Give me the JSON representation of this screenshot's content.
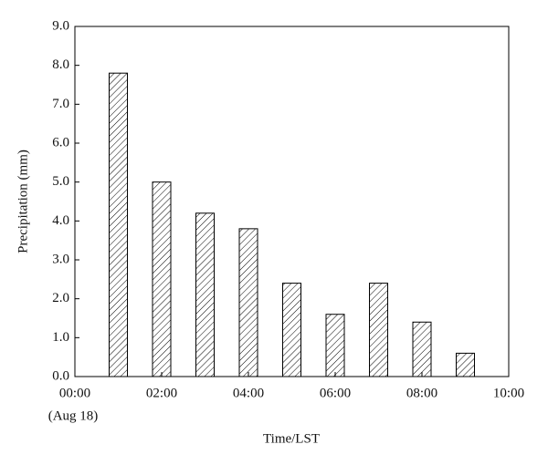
{
  "chart_data": {
    "type": "bar",
    "x_label": "Time/LST",
    "y_label": "Precipitation (mm)",
    "x_annotation": "(Aug 18)",
    "x": [
      1,
      2,
      3,
      4,
      5,
      6,
      7,
      8,
      9
    ],
    "values": [
      7.8,
      5.0,
      4.2,
      3.8,
      2.4,
      1.6,
      2.4,
      1.4,
      0.6
    ],
    "color": "#000000",
    "xlim": [
      0,
      10
    ],
    "xticks": [
      {
        "value": 0,
        "label": "00:00"
      },
      {
        "value": 2,
        "label": "02:00"
      },
      {
        "value": 4,
        "label": "04:00"
      },
      {
        "value": 6,
        "label": "06:00"
      },
      {
        "value": 8,
        "label": "08:00"
      },
      {
        "value": 10,
        "label": "10:00"
      }
    ],
    "ylim": [
      0,
      9
    ],
    "yticks": [
      {
        "value": 0,
        "label": "0.0"
      },
      {
        "value": 1,
        "label": "1.0"
      },
      {
        "value": 2,
        "label": "2.0"
      },
      {
        "value": 3,
        "label": "3.0"
      },
      {
        "value": 4,
        "label": "4.0"
      },
      {
        "value": 5,
        "label": "5.0"
      },
      {
        "value": 6,
        "label": "6.0"
      },
      {
        "value": 7,
        "label": "7.0"
      },
      {
        "value": 8,
        "label": "8.0"
      },
      {
        "value": 9,
        "label": "9.0"
      }
    ],
    "grid": false
  }
}
